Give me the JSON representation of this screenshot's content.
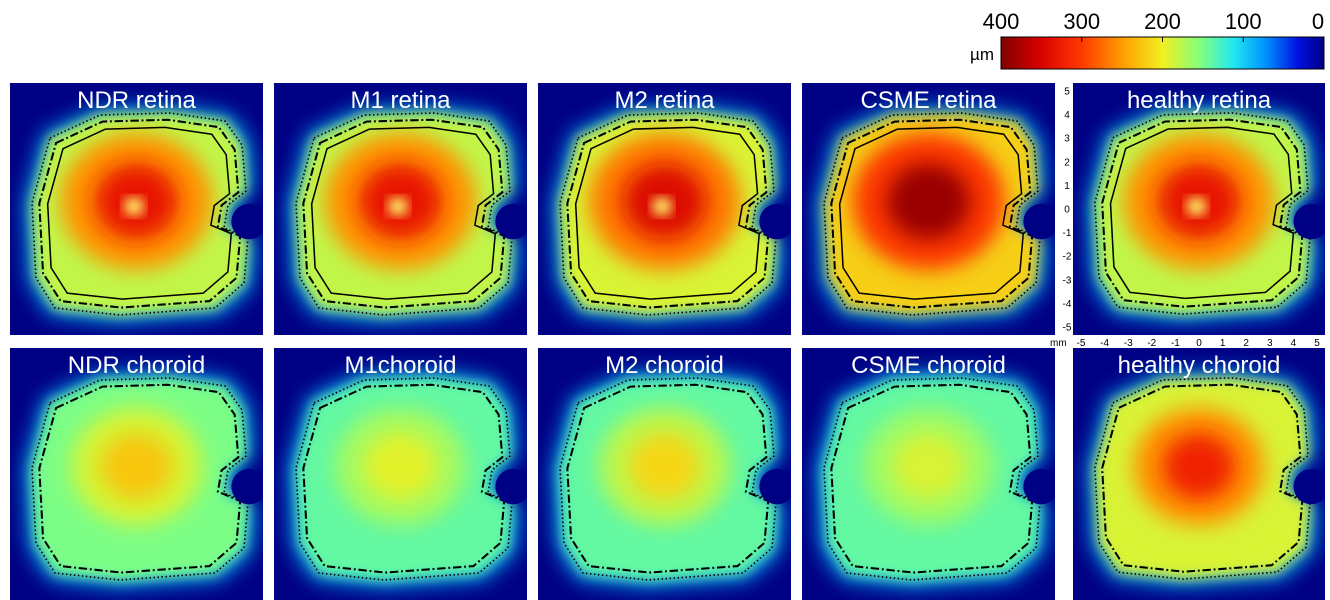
{
  "chart_data": {
    "type": "heatmap",
    "colormap": "jet",
    "colorbar": {
      "unit": "µm",
      "range": [
        400,
        0
      ],
      "tick_labels": [
        "400",
        "300",
        "200",
        "100",
        "0"
      ]
    },
    "axis": {
      "unit": "mm",
      "range": [
        -5,
        5
      ],
      "x_tick_labels": [
        "-5",
        "-4",
        "-3",
        "-2",
        "-1",
        "0",
        "1",
        "2",
        "3",
        "4",
        "5"
      ],
      "y_tick_labels": [
        "5",
        "4",
        "3",
        "2",
        "1",
        "0",
        "-1",
        "-2",
        "-3",
        "-4",
        "-5"
      ]
    },
    "panels": [
      {
        "title": "NDR retina",
        "row": "retina",
        "center_value_um": 330,
        "rim_value_um": 180
      },
      {
        "title": "M1 retina",
        "row": "retina",
        "center_value_um": 330,
        "rim_value_um": 180
      },
      {
        "title": "M2 retina",
        "row": "retina",
        "center_value_um": 345,
        "rim_value_um": 190
      },
      {
        "title": "CSME retina",
        "row": "retina",
        "center_value_um": 385,
        "rim_value_um": 220
      },
      {
        "title": "healthy retina",
        "row": "retina",
        "center_value_um": 330,
        "rim_value_um": 180
      },
      {
        "title": "NDR choroid",
        "row": "choroid",
        "center_value_um": 225,
        "rim_value_um": 150
      },
      {
        "title": "M1choroid",
        "row": "choroid",
        "center_value_um": 195,
        "rim_value_um": 140
      },
      {
        "title": "M2 choroid",
        "row": "choroid",
        "center_value_um": 215,
        "rim_value_um": 140
      },
      {
        "title": "CSME choroid",
        "row": "choroid",
        "center_value_um": 190,
        "rim_value_um": 140
      },
      {
        "title": "healthy choroid",
        "row": "choroid",
        "center_value_um": 320,
        "rim_value_um": 190
      }
    ]
  }
}
